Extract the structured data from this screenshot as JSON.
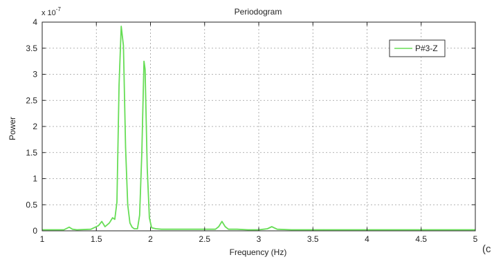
{
  "chart_data": {
    "type": "line",
    "title": "Periodogram",
    "xlabel": "Frequency (Hz)",
    "ylabel": "Power",
    "xlim": [
      1,
      5
    ],
    "ylim": [
      0,
      4
    ],
    "y_exponent_label": "x 10",
    "y_exponent_power": "-7",
    "x_ticks": [
      "1",
      "1.5",
      "2",
      "2.5",
      "3",
      "3.5",
      "4",
      "4.5",
      "5"
    ],
    "y_ticks": [
      "0",
      "0.5",
      "1",
      "1.5",
      "2",
      "2.5",
      "3",
      "3.5",
      "4"
    ],
    "grid": true,
    "legend_position": "top-right",
    "series": [
      {
        "name": "P#3-Z",
        "color": "#66dd55",
        "x": [
          1.0,
          1.2,
          1.25,
          1.28,
          1.32,
          1.45,
          1.52,
          1.55,
          1.58,
          1.62,
          1.65,
          1.67,
          1.69,
          1.71,
          1.73,
          1.75,
          1.77,
          1.79,
          1.81,
          1.83,
          1.85,
          1.88,
          1.9,
          1.92,
          1.94,
          1.95,
          1.97,
          1.99,
          2.01,
          2.05,
          2.1,
          2.2,
          2.4,
          2.6,
          2.63,
          2.66,
          2.69,
          2.72,
          2.8,
          2.9,
          3.0,
          3.08,
          3.12,
          3.17,
          3.3,
          3.6,
          4.0,
          4.5,
          5.0
        ],
        "y": [
          0.02,
          0.02,
          0.07,
          0.03,
          0.02,
          0.03,
          0.1,
          0.18,
          0.08,
          0.15,
          0.25,
          0.22,
          0.55,
          2.8,
          3.92,
          3.55,
          1.6,
          0.5,
          0.15,
          0.07,
          0.04,
          0.04,
          0.3,
          1.5,
          3.25,
          3.1,
          1.2,
          0.25,
          0.06,
          0.04,
          0.03,
          0.03,
          0.03,
          0.03,
          0.08,
          0.18,
          0.08,
          0.03,
          0.03,
          0.02,
          0.02,
          0.04,
          0.08,
          0.03,
          0.02,
          0.02,
          0.02,
          0.02,
          0.02
        ]
      }
    ]
  },
  "corner_label": "(c"
}
